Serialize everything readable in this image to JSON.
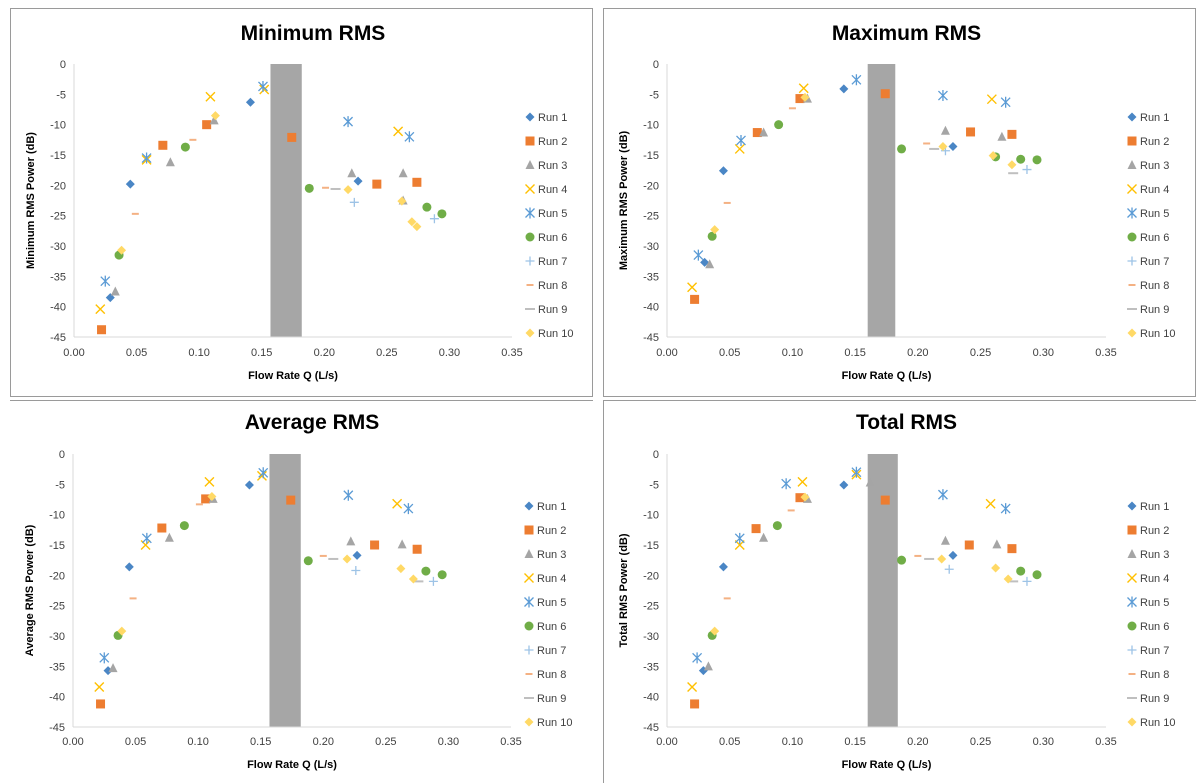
{
  "legend": [
    "Run 1",
    "Run 2",
    "Run 3",
    "Run 4",
    "Run 5",
    "Run 6",
    "Run 7",
    "Run 8",
    "Run 9",
    "Run 10"
  ],
  "series_styles": [
    {
      "color": "#4a86c5",
      "marker": "diamond"
    },
    {
      "color": "#ed7d31",
      "marker": "square"
    },
    {
      "color": "#a5a5a5",
      "marker": "triangle"
    },
    {
      "color": "#ffc000",
      "marker": "x"
    },
    {
      "color": "#5b9bd5",
      "marker": "star"
    },
    {
      "color": "#70ad47",
      "marker": "circle"
    },
    {
      "color": "#9dc3e6",
      "marker": "plus"
    },
    {
      "color": "#f4b183",
      "marker": "dash"
    },
    {
      "color": "#bfbfbf",
      "marker": "longdash"
    },
    {
      "color": "#ffd966",
      "marker": "diamond"
    }
  ],
  "shaded_band_color": "#a6a6a6",
  "chart_data": [
    {
      "type": "scatter",
      "title": "Minimum RMS",
      "xlabel": "Flow Rate Q (L/s)",
      "ylabel": "Minimum RMS Power (dB)",
      "xlim": [
        0,
        0.35
      ],
      "ylim": [
        -45,
        0
      ],
      "xticks": [
        "0.00",
        "0.05",
        "0.10",
        "0.15",
        "0.20",
        "0.25",
        "0.30",
        "0.35"
      ],
      "yticks": [
        "0",
        "-5",
        "-10",
        "-15",
        "-20",
        "-25",
        "-30",
        "-35",
        "-40",
        "-45"
      ],
      "shaded_band": [
        0.157,
        0.182
      ],
      "legend_position": "right",
      "series": [
        {
          "name": "Run 1",
          "points": [
            [
              0.029,
              -38.5
            ],
            [
              0.045,
              -19.8
            ],
            [
              0.141,
              -6.3
            ],
            [
              0.227,
              -19.3
            ]
          ]
        },
        {
          "name": "Run 2",
          "points": [
            [
              0.022,
              -43.8
            ],
            [
              0.071,
              -13.4
            ],
            [
              0.106,
              -10
            ],
            [
              0.174,
              -12.1
            ],
            [
              0.242,
              -19.8
            ],
            [
              0.274,
              -19.5
            ]
          ]
        },
        {
          "name": "Run 3",
          "points": [
            [
              0.033,
              -37.5
            ],
            [
              0.077,
              -16.2
            ],
            [
              0.112,
              -9.3
            ],
            [
              0.222,
              -18
            ],
            [
              0.263,
              -18
            ],
            [
              0.263,
              -22.5
            ]
          ]
        },
        {
          "name": "Run 4",
          "points": [
            [
              0.021,
              -40.4
            ],
            [
              0.058,
              -15.8
            ],
            [
              0.109,
              -5.4
            ],
            [
              0.152,
              -4.2
            ],
            [
              0.259,
              -11.1
            ]
          ]
        },
        {
          "name": "Run 5",
          "points": [
            [
              0.025,
              -35.8
            ],
            [
              0.058,
              -15.5
            ],
            [
              0.151,
              -3.7
            ],
            [
              0.219,
              -9.5
            ],
            [
              0.268,
              -12
            ]
          ]
        },
        {
          "name": "Run 6",
          "points": [
            [
              0.036,
              -31.5
            ],
            [
              0.089,
              -13.7
            ],
            [
              0.188,
              -20.5
            ],
            [
              0.282,
              -23.6
            ],
            [
              0.294,
              -24.7
            ]
          ]
        },
        {
          "name": "Run 7",
          "points": [
            [
              0.224,
              -22.8
            ],
            [
              0.288,
              -25.5
            ]
          ]
        },
        {
          "name": "Run 8",
          "points": [
            [
              0.049,
              -24.7
            ],
            [
              0.095,
              -12.5
            ],
            [
              0.201,
              -20.4
            ]
          ]
        },
        {
          "name": "Run 9",
          "points": [
            [
              0.209,
              -20.6
            ]
          ]
        },
        {
          "name": "Run 10",
          "points": [
            [
              0.038,
              -30.7
            ],
            [
              0.113,
              -8.5
            ],
            [
              0.219,
              -20.7
            ],
            [
              0.262,
              -22.6
            ],
            [
              0.27,
              -26
            ],
            [
              0.274,
              -26.8
            ]
          ]
        }
      ]
    },
    {
      "type": "scatter",
      "title": "Maximum RMS",
      "xlabel": "Flow Rate Q (L/s)",
      "ylabel": "Maximum RMS Power (dB)",
      "xlim": [
        0,
        0.35
      ],
      "ylim": [
        -45,
        0
      ],
      "xticks": [
        "0.00",
        "0.05",
        "0.10",
        "0.15",
        "0.20",
        "0.25",
        "0.30",
        "0.35"
      ],
      "yticks": [
        "0",
        "-5",
        "-10",
        "-15",
        "-20",
        "-25",
        "-30",
        "-35",
        "-40",
        "-45"
      ],
      "shaded_band": [
        0.16,
        0.182
      ],
      "legend_position": "right",
      "series": [
        {
          "name": "Run 1",
          "points": [
            [
              0.03,
              -32.7
            ],
            [
              0.045,
              -17.6
            ],
            [
              0.141,
              -4.1
            ],
            [
              0.228,
              -13.6
            ]
          ]
        },
        {
          "name": "Run 2",
          "points": [
            [
              0.022,
              -38.8
            ],
            [
              0.072,
              -11.3
            ],
            [
              0.106,
              -5.7
            ],
            [
              0.174,
              -4.9
            ],
            [
              0.242,
              -11.2
            ],
            [
              0.275,
              -11.6
            ]
          ]
        },
        {
          "name": "Run 3",
          "points": [
            [
              0.034,
              -33
            ],
            [
              0.077,
              -11.3
            ],
            [
              0.112,
              -5.7
            ],
            [
              0.222,
              -11
            ],
            [
              0.267,
              -12
            ]
          ]
        },
        {
          "name": "Run 4",
          "points": [
            [
              0.02,
              -36.8
            ],
            [
              0.058,
              -14
            ],
            [
              0.109,
              -4
            ],
            [
              0.259,
              -5.8
            ]
          ]
        },
        {
          "name": "Run 5",
          "points": [
            [
              0.025,
              -31.5
            ],
            [
              0.059,
              -12.6
            ],
            [
              0.151,
              -2.6
            ],
            [
              0.22,
              -5.2
            ],
            [
              0.27,
              -6.3
            ]
          ]
        },
        {
          "name": "Run 6",
          "points": [
            [
              0.036,
              -28.4
            ],
            [
              0.089,
              -10
            ],
            [
              0.187,
              -14
            ],
            [
              0.262,
              -15.3
            ],
            [
              0.282,
              -15.7
            ],
            [
              0.295,
              -15.8
            ]
          ]
        },
        {
          "name": "Run 7",
          "points": [
            [
              0.222,
              -14.3
            ],
            [
              0.287,
              -17.4
            ]
          ]
        },
        {
          "name": "Run 8",
          "points": [
            [
              0.048,
              -22.9
            ],
            [
              0.1,
              -7.3
            ],
            [
              0.207,
              -13.1
            ]
          ]
        },
        {
          "name": "Run 9",
          "points": [
            [
              0.213,
              -14
            ],
            [
              0.276,
              -18
            ]
          ]
        },
        {
          "name": "Run 10",
          "points": [
            [
              0.038,
              -27.3
            ],
            [
              0.11,
              -5.5
            ],
            [
              0.22,
              -13.6
            ],
            [
              0.26,
              -15.1
            ],
            [
              0.275,
              -16.6
            ]
          ]
        }
      ]
    },
    {
      "type": "scatter",
      "title": "Average RMS",
      "xlabel": "Flow Rate Q (L/s)",
      "ylabel": "Average RMS Power (dB)",
      "xlim": [
        0,
        0.35
      ],
      "ylim": [
        -45,
        0
      ],
      "xticks": [
        "0.00",
        "0.05",
        "0.10",
        "0.15",
        "0.20",
        "0.25",
        "0.30",
        "0.35"
      ],
      "yticks": [
        "0",
        "-5",
        "-10",
        "-15",
        "-20",
        "-25",
        "-30",
        "-35",
        "-40",
        "-45"
      ],
      "shaded_band": [
        0.157,
        0.182
      ],
      "legend_position": "right",
      "series": [
        {
          "name": "Run 1",
          "points": [
            [
              0.028,
              -35.7
            ],
            [
              0.045,
              -18.6
            ],
            [
              0.141,
              -5.1
            ],
            [
              0.227,
              -16.7
            ]
          ]
        },
        {
          "name": "Run 2",
          "points": [
            [
              0.022,
              -41.2
            ],
            [
              0.071,
              -12.2
            ],
            [
              0.106,
              -7.4
            ],
            [
              0.174,
              -7.6
            ],
            [
              0.241,
              -15
            ],
            [
              0.275,
              -15.7
            ]
          ]
        },
        {
          "name": "Run 3",
          "points": [
            [
              0.032,
              -35.3
            ],
            [
              0.077,
              -13.8
            ],
            [
              0.112,
              -7.4
            ],
            [
              0.222,
              -14.4
            ],
            [
              0.263,
              -14.9
            ]
          ]
        },
        {
          "name": "Run 4",
          "points": [
            [
              0.021,
              -38.4
            ],
            [
              0.058,
              -15
            ],
            [
              0.109,
              -4.6
            ],
            [
              0.151,
              -3.6
            ],
            [
              0.259,
              -8.2
            ]
          ]
        },
        {
          "name": "Run 5",
          "points": [
            [
              0.025,
              -33.6
            ],
            [
              0.059,
              -13.9
            ],
            [
              0.152,
              -3.1
            ],
            [
              0.22,
              -6.8
            ],
            [
              0.268,
              -9
            ]
          ]
        },
        {
          "name": "Run 6",
          "points": [
            [
              0.036,
              -29.9
            ],
            [
              0.089,
              -11.8
            ],
            [
              0.188,
              -17.6
            ],
            [
              0.282,
              -19.3
            ],
            [
              0.295,
              -19.9
            ]
          ]
        },
        {
          "name": "Run 7",
          "points": [
            [
              0.226,
              -19.2
            ],
            [
              0.288,
              -21
            ]
          ]
        },
        {
          "name": "Run 8",
          "points": [
            [
              0.048,
              -23.8
            ],
            [
              0.101,
              -8.3
            ],
            [
              0.2,
              -16.8
            ]
          ]
        },
        {
          "name": "Run 9",
          "points": [
            [
              0.208,
              -17.3
            ],
            [
              0.276,
              -21
            ]
          ]
        },
        {
          "name": "Run 10",
          "points": [
            [
              0.039,
              -29.2
            ],
            [
              0.111,
              -7
            ],
            [
              0.219,
              -17.3
            ],
            [
              0.262,
              -18.9
            ],
            [
              0.272,
              -20.6
            ]
          ]
        }
      ]
    },
    {
      "type": "scatter",
      "title": "Total RMS",
      "xlabel": "Flow Rate Q (L/s)",
      "ylabel": "Total RMS Power (dB)",
      "xlim": [
        0,
        0.35
      ],
      "ylim": [
        -45,
        0
      ],
      "xticks": [
        "0.00",
        "0.05",
        "0.10",
        "0.15",
        "0.20",
        "0.25",
        "0.30",
        "0.35"
      ],
      "yticks": [
        "0",
        "-5",
        "-10",
        "-15",
        "-20",
        "-25",
        "-30",
        "-35",
        "-40",
        "-45"
      ],
      "shaded_band": [
        0.16,
        0.184
      ],
      "legend_position": "right",
      "series": [
        {
          "name": "Run 1",
          "points": [
            [
              0.029,
              -35.7
            ],
            [
              0.045,
              -18.6
            ],
            [
              0.141,
              -5.1
            ],
            [
              0.228,
              -16.7
            ]
          ]
        },
        {
          "name": "Run 2",
          "points": [
            [
              0.022,
              -41.2
            ],
            [
              0.071,
              -12.3
            ],
            [
              0.106,
              -7.2
            ],
            [
              0.174,
              -7.6
            ],
            [
              0.241,
              -15
            ],
            [
              0.275,
              -15.6
            ]
          ]
        },
        {
          "name": "Run 3",
          "points": [
            [
              0.033,
              -35
            ],
            [
              0.077,
              -13.8
            ],
            [
              0.112,
              -7.4
            ],
            [
              0.162,
              -4.7
            ],
            [
              0.222,
              -14.3
            ],
            [
              0.263,
              -14.9
            ]
          ]
        },
        {
          "name": "Run 4",
          "points": [
            [
              0.02,
              -38.4
            ],
            [
              0.058,
              -15
            ],
            [
              0.108,
              -4.6
            ],
            [
              0.151,
              -3.4
            ],
            [
              0.258,
              -8.2
            ]
          ]
        },
        {
          "name": "Run 5",
          "points": [
            [
              0.024,
              -33.6
            ],
            [
              0.058,
              -13.9
            ],
            [
              0.095,
              -4.9
            ],
            [
              0.151,
              -3
            ],
            [
              0.22,
              -6.7
            ],
            [
              0.27,
              -9
            ]
          ]
        },
        {
          "name": "Run 6",
          "points": [
            [
              0.036,
              -29.9
            ],
            [
              0.088,
              -11.8
            ],
            [
              0.187,
              -17.5
            ],
            [
              0.282,
              -19.3
            ],
            [
              0.295,
              -19.9
            ]
          ]
        },
        {
          "name": "Run 7",
          "points": [
            [
              0.225,
              -19
            ],
            [
              0.287,
              -21
            ]
          ]
        },
        {
          "name": "Run 8",
          "points": [
            [
              0.048,
              -23.8
            ],
            [
              0.099,
              -9.3
            ],
            [
              0.2,
              -16.8
            ]
          ]
        },
        {
          "name": "Run 9",
          "points": [
            [
              0.209,
              -17.3
            ],
            [
              0.276,
              -21
            ]
          ]
        },
        {
          "name": "Run 10",
          "points": [
            [
              0.038,
              -29.2
            ],
            [
              0.11,
              -7.1
            ],
            [
              0.219,
              -17.3
            ],
            [
              0.262,
              -18.8
            ],
            [
              0.272,
              -20.6
            ]
          ]
        }
      ]
    }
  ]
}
